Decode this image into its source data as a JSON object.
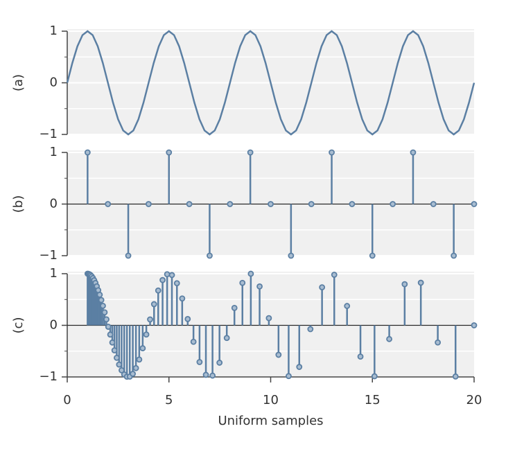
{
  "chart_data": [
    {
      "type": "line",
      "ylabel": "(a)",
      "color": "#5b7fa3",
      "xlim": [
        0,
        20
      ],
      "ylim": [
        -1,
        1
      ],
      "yticks": [
        {
          "value": -1,
          "label": "−1"
        },
        0,
        1
      ],
      "yminor": [
        -0.5,
        0.5
      ],
      "grid": true,
      "x": [
        0,
        0.25,
        0.5,
        0.75,
        1,
        1.25,
        1.5,
        1.75,
        2,
        2.25,
        2.5,
        2.75,
        3,
        3.25,
        3.5,
        3.75,
        4,
        4.25,
        4.5,
        4.75,
        5,
        5.25,
        5.5,
        5.75,
        6,
        6.25,
        6.5,
        6.75,
        7,
        7.25,
        7.5,
        7.75,
        8,
        8.25,
        8.5,
        8.75,
        9,
        9.25,
        9.5,
        9.75,
        10,
        10.25,
        10.5,
        10.75,
        11,
        11.25,
        11.5,
        11.75,
        12,
        12.25,
        12.5,
        12.75,
        13,
        13.25,
        13.5,
        13.75,
        14,
        14.25,
        14.5,
        14.75,
        15,
        15.25,
        15.5,
        15.75,
        16,
        16.25,
        16.5,
        16.75,
        17,
        17.25,
        17.5,
        17.75,
        18,
        18.25,
        18.5,
        18.75,
        19,
        19.25,
        19.5,
        19.75,
        20
      ],
      "values": [
        0,
        0.383,
        0.707,
        0.924,
        1,
        0.924,
        0.707,
        0.383,
        0,
        -0.383,
        -0.707,
        -0.924,
        -1,
        -0.924,
        -0.707,
        -0.383,
        0,
        0.383,
        0.707,
        0.924,
        1,
        0.924,
        0.707,
        0.383,
        0,
        -0.383,
        -0.707,
        -0.924,
        -1,
        -0.924,
        -0.707,
        -0.383,
        0,
        0.383,
        0.707,
        0.924,
        1,
        0.924,
        0.707,
        0.383,
        0,
        -0.383,
        -0.707,
        -0.924,
        -1,
        -0.924,
        -0.707,
        -0.383,
        0,
        0.383,
        0.707,
        0.924,
        1,
        0.924,
        0.707,
        0.383,
        0,
        -0.383,
        -0.707,
        -0.924,
        -1,
        -0.924,
        -0.707,
        -0.383,
        0,
        0.383,
        0.707,
        0.924,
        1,
        0.924,
        0.707,
        0.383,
        0,
        -0.383,
        -0.707,
        -0.924,
        -1,
        -0.924,
        -0.707,
        -0.383,
        0
      ]
    },
    {
      "type": "stem",
      "ylabel": "(b)",
      "color": "#5b7fa3",
      "xlim": [
        0,
        20
      ],
      "ylim": [
        -1,
        1
      ],
      "yticks": [
        {
          "value": -1,
          "label": "−1"
        },
        0,
        1
      ],
      "yminor": [
        -0.5,
        0.5
      ],
      "grid": true,
      "x": [
        1,
        2,
        3,
        4,
        5,
        6,
        7,
        8,
        9,
        10,
        11,
        12,
        13,
        14,
        15,
        16,
        17,
        18,
        19,
        20
      ],
      "values": [
        1,
        0,
        -1,
        0,
        1,
        0,
        -1,
        0,
        1,
        0,
        -1,
        0,
        1,
        0,
        -1,
        0,
        1,
        0,
        -1,
        0
      ]
    },
    {
      "type": "stem",
      "ylabel": "(c)",
      "xlabel": "Uniform samples",
      "color": "#5b7fa3",
      "xlim": [
        0,
        20
      ],
      "ylim": [
        -1,
        1
      ],
      "yticks": [
        {
          "value": -1,
          "label": "−1"
        },
        0,
        1
      ],
      "yminor": [
        -0.5,
        0.5
      ],
      "xticks": [
        0,
        5,
        10,
        15,
        20
      ],
      "grid": true,
      "x": [
        1,
        1.048,
        1.098,
        1.151,
        1.206,
        1.264,
        1.324,
        1.388,
        1.454,
        1.524,
        1.597,
        1.674,
        1.754,
        1.838,
        1.926,
        2.018,
        2.115,
        2.216,
        2.322,
        2.434,
        2.55,
        2.673,
        2.801,
        2.935,
        3.075,
        3.223,
        3.377,
        3.539,
        3.709,
        3.887,
        4.073,
        4.268,
        4.472,
        4.687,
        4.911,
        5.146,
        5.393,
        5.651,
        5.922,
        6.206,
        6.504,
        6.816,
        7.142,
        7.485,
        7.843,
        8.219,
        8.612,
        9.025,
        9.457,
        9.911,
        10.386,
        10.884,
        11.406,
        11.953,
        12.526,
        13.126,
        13.755,
        14.414,
        15.105,
        15.829,
        16.587,
        17.382,
        18.215,
        19.088,
        20
      ],
      "values": [
        1,
        0.997,
        0.988,
        0.972,
        0.948,
        0.915,
        0.873,
        0.82,
        0.756,
        0.68,
        0.592,
        0.49,
        0.378,
        0.252,
        0.116,
        -0.028,
        -0.179,
        -0.333,
        -0.485,
        -0.629,
        -0.76,
        -0.871,
        -0.951,
        -0.995,
        -0.993,
        -0.94,
        -0.829,
        -0.663,
        -0.444,
        -0.178,
        0.114,
        0.41,
        0.674,
        0.877,
        0.99,
        0.974,
        0.815,
        0.52,
        0.122,
        -0.319,
        -0.711,
        -0.959,
        -0.974,
        -0.724,
        -0.245,
        0.337,
        0.822,
        0.999,
        0.753,
        0.139,
        -0.571,
        -0.983,
        -0.806,
        -0.074,
        0.737,
        0.98,
        0.375,
        -0.606,
        -0.987,
        -0.266,
        0.797,
        0.825,
        -0.332,
        -0.991,
        0
      ]
    }
  ]
}
